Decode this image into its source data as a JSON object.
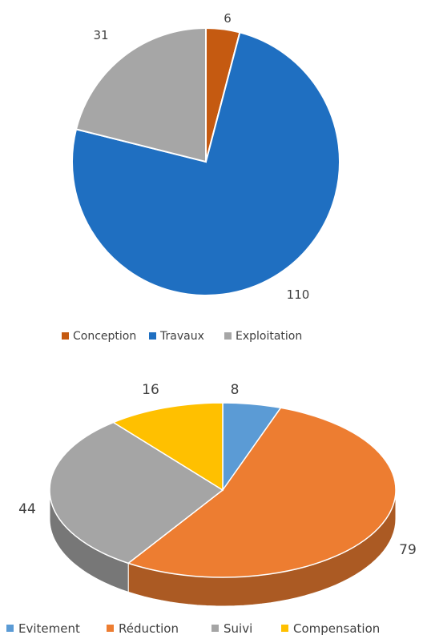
{
  "chart_data": [
    {
      "type": "pie",
      "style": "2d",
      "categories": [
        "Conception",
        "Travaux",
        "Exploitation"
      ],
      "values": [
        6,
        110,
        31
      ],
      "data_labels": [
        "6",
        "110",
        "31"
      ],
      "colors": [
        "#c55a11",
        "#1f6fc1",
        "#a6a6a6"
      ],
      "legend_position": "bottom",
      "title": "",
      "start_angle_deg": 0,
      "direction": "clockwise"
    },
    {
      "type": "pie",
      "style": "3d",
      "categories": [
        "Evitement",
        "Réduction",
        "Suivi",
        "Compensation"
      ],
      "values": [
        8,
        79,
        44,
        16
      ],
      "data_labels": [
        "8",
        "79",
        "44",
        "16"
      ],
      "colors": [
        "#5b9bd5",
        "#ed7d31",
        "#a5a5a5",
        "#ffc000"
      ],
      "legend_position": "bottom",
      "title": "",
      "start_angle_deg": 0,
      "direction": "clockwise"
    }
  ]
}
